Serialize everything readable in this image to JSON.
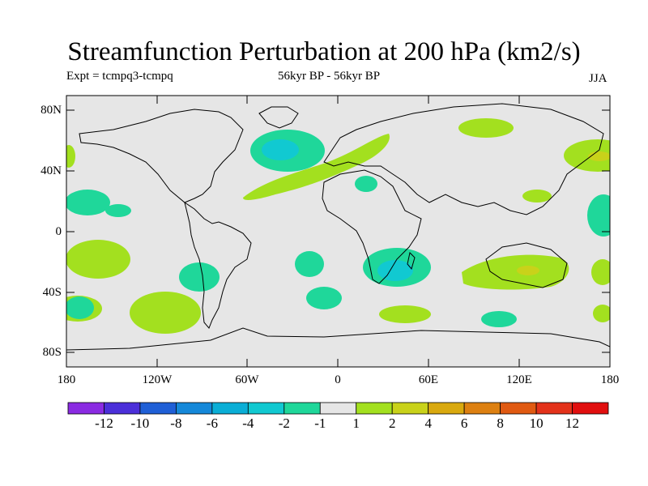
{
  "title": "Streamfunction Perturbation at 200 hPa (km2/s)",
  "experiment": "Expt = tcmpq3-tcmpq",
  "period": "56kyr BP - 56kyr BP",
  "season": "JJA",
  "map": {
    "projection": "cylindrical equidistant",
    "background_color": "#e6e6e6",
    "lat_ticks": [
      "80N",
      "40N",
      "0",
      "40S",
      "80S"
    ],
    "lon_ticks": [
      "180",
      "120W",
      "60W",
      "0",
      "60E",
      "120E",
      "180"
    ]
  },
  "colorbar": {
    "labels": [
      "-12",
      "-10",
      "-8",
      "-6",
      "-4",
      "-2",
      "-1",
      "1",
      "2",
      "4",
      "6",
      "8",
      "10",
      "12"
    ],
    "colors": [
      "#8a2be2",
      "#4b2fd9",
      "#1f5fd6",
      "#1588d9",
      "#0aaed6",
      "#11c9d1",
      "#1fd79a",
      "#e6e6e6",
      "#a3e01f",
      "#c9d21a",
      "#d9a90f",
      "#dd8011",
      "#e05a12",
      "#e3321a",
      "#e10f0f"
    ]
  },
  "fields": [
    {
      "name": "north-atlantic-low",
      "level": "-2",
      "color": "#1fd79a"
    },
    {
      "name": "north-atlantic-core",
      "level": "-4",
      "color": "#11c9d1"
    },
    {
      "name": "africa-low",
      "level": "-2",
      "color": "#1fd79a"
    },
    {
      "name": "africa-core",
      "level": "-4",
      "color": "#11c9d1"
    },
    {
      "name": "atlantic-europe-band",
      "level": "1",
      "color": "#a3e01f"
    },
    {
      "name": "australia-high",
      "level": "1",
      "color": "#a3e01f"
    },
    {
      "name": "australia-core",
      "level": "2",
      "color": "#c9d21a"
    },
    {
      "name": "nw-pacific-high",
      "level": "1",
      "color": "#a3e01f"
    },
    {
      "name": "nw-pacific-core",
      "level": "2",
      "color": "#c9d21a"
    }
  ]
}
